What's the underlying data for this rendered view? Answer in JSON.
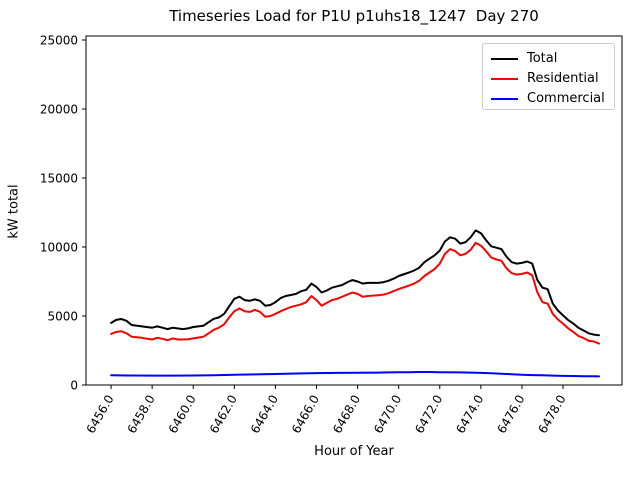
{
  "title": "Timeseries Load for P1U p1uhs18_1247  Day 270",
  "chart_data": {
    "type": "line",
    "title": "Timeseries Load for P1U p1uhs18_1247  Day 270",
    "xlabel": "Hour of Year",
    "ylabel": "kW total",
    "xlim": [
      6454.78,
      6480.87
    ],
    "ylim": [
      0,
      25290
    ],
    "grid": false,
    "xticks": [
      6456,
      6458,
      6460,
      6462,
      6464,
      6466,
      6468,
      6470,
      6472,
      6474,
      6476,
      6478
    ],
    "xtick_labels": [
      "6456.0",
      "6458.0",
      "6460.0",
      "6462.0",
      "6464.0",
      "6466.0",
      "6468.0",
      "6470.0",
      "6472.0",
      "6474.0",
      "6476.0",
      "6478.0"
    ],
    "yticks": [
      0,
      5000,
      10000,
      15000,
      20000,
      25000
    ],
    "ytick_labels": [
      "0",
      "5000",
      "10000",
      "15000",
      "20000",
      "25000"
    ],
    "legend": {
      "position": "upper right"
    },
    "series": [
      {
        "name": "Total",
        "color": "#000000",
        "points": [
          [
            6456.0,
            4500
          ],
          [
            6456.25,
            4720
          ],
          [
            6456.5,
            4780
          ],
          [
            6456.75,
            4650
          ],
          [
            6457.0,
            4350
          ],
          [
            6457.5,
            4250
          ],
          [
            6458.0,
            4150
          ],
          [
            6458.25,
            4250
          ],
          [
            6458.5,
            4150
          ],
          [
            6458.75,
            4050
          ],
          [
            6459.0,
            4150
          ],
          [
            6459.5,
            4050
          ],
          [
            6459.75,
            4100
          ],
          [
            6460.0,
            4200
          ],
          [
            6460.5,
            4300
          ],
          [
            6460.75,
            4550
          ],
          [
            6461.0,
            4800
          ],
          [
            6461.25,
            4900
          ],
          [
            6461.5,
            5150
          ],
          [
            6461.75,
            5700
          ],
          [
            6462.0,
            6250
          ],
          [
            6462.25,
            6400
          ],
          [
            6462.5,
            6150
          ],
          [
            6462.75,
            6100
          ],
          [
            6463.0,
            6200
          ],
          [
            6463.25,
            6100
          ],
          [
            6463.5,
            5750
          ],
          [
            6463.75,
            5800
          ],
          [
            6464.0,
            6000
          ],
          [
            6464.25,
            6300
          ],
          [
            6464.5,
            6450
          ],
          [
            6464.75,
            6520
          ],
          [
            6465.0,
            6600
          ],
          [
            6465.25,
            6800
          ],
          [
            6465.5,
            6900
          ],
          [
            6465.75,
            7350
          ],
          [
            6466.0,
            7100
          ],
          [
            6466.25,
            6700
          ],
          [
            6466.5,
            6850
          ],
          [
            6466.75,
            7050
          ],
          [
            6467.0,
            7150
          ],
          [
            6467.25,
            7250
          ],
          [
            6467.5,
            7450
          ],
          [
            6467.75,
            7600
          ],
          [
            6468.0,
            7500
          ],
          [
            6468.25,
            7350
          ],
          [
            6468.5,
            7400
          ],
          [
            6469.0,
            7400
          ],
          [
            6469.25,
            7450
          ],
          [
            6469.5,
            7550
          ],
          [
            6469.75,
            7700
          ],
          [
            6470.0,
            7900
          ],
          [
            6470.5,
            8150
          ],
          [
            6470.75,
            8300
          ],
          [
            6471.0,
            8500
          ],
          [
            6471.25,
            8900
          ],
          [
            6471.5,
            9150
          ],
          [
            6471.75,
            9400
          ],
          [
            6472.0,
            9750
          ],
          [
            6472.25,
            10400
          ],
          [
            6472.5,
            10700
          ],
          [
            6472.75,
            10600
          ],
          [
            6473.0,
            10250
          ],
          [
            6473.25,
            10350
          ],
          [
            6473.5,
            10700
          ],
          [
            6473.75,
            11200
          ],
          [
            6474.0,
            11000
          ],
          [
            6474.25,
            10500
          ],
          [
            6474.5,
            10050
          ],
          [
            6474.75,
            9950
          ],
          [
            6475.0,
            9850
          ],
          [
            6475.25,
            9300
          ],
          [
            6475.5,
            8900
          ],
          [
            6475.75,
            8800
          ],
          [
            6476.0,
            8850
          ],
          [
            6476.25,
            8950
          ],
          [
            6476.5,
            8800
          ],
          [
            6476.75,
            7600
          ],
          [
            6477.0,
            7050
          ],
          [
            6477.25,
            6950
          ],
          [
            6477.5,
            5900
          ],
          [
            6477.75,
            5400
          ],
          [
            6478.0,
            5050
          ],
          [
            6478.25,
            4700
          ],
          [
            6478.5,
            4450
          ],
          [
            6478.75,
            4150
          ],
          [
            6479.0,
            3950
          ],
          [
            6479.25,
            3750
          ],
          [
            6479.5,
            3650
          ],
          [
            6479.75,
            3600
          ]
        ]
      },
      {
        "name": "Residential",
        "color": "#ff0000",
        "points": [
          [
            6456.0,
            3700
          ],
          [
            6456.25,
            3850
          ],
          [
            6456.5,
            3900
          ],
          [
            6456.75,
            3750
          ],
          [
            6457.0,
            3500
          ],
          [
            6457.5,
            3420
          ],
          [
            6457.75,
            3350
          ],
          [
            6458.0,
            3300
          ],
          [
            6458.25,
            3420
          ],
          [
            6458.5,
            3350
          ],
          [
            6458.75,
            3250
          ],
          [
            6459.0,
            3380
          ],
          [
            6459.25,
            3300
          ],
          [
            6459.5,
            3300
          ],
          [
            6459.75,
            3320
          ],
          [
            6460.0,
            3380
          ],
          [
            6460.5,
            3500
          ],
          [
            6460.75,
            3750
          ],
          [
            6461.0,
            4000
          ],
          [
            6461.25,
            4150
          ],
          [
            6461.5,
            4400
          ],
          [
            6461.75,
            4900
          ],
          [
            6462.0,
            5350
          ],
          [
            6462.25,
            5550
          ],
          [
            6462.5,
            5350
          ],
          [
            6462.75,
            5300
          ],
          [
            6463.0,
            5450
          ],
          [
            6463.25,
            5300
          ],
          [
            6463.5,
            4950
          ],
          [
            6463.75,
            5000
          ],
          [
            6464.0,
            5150
          ],
          [
            6464.25,
            5350
          ],
          [
            6464.5,
            5500
          ],
          [
            6464.75,
            5650
          ],
          [
            6465.0,
            5750
          ],
          [
            6465.25,
            5850
          ],
          [
            6465.5,
            6000
          ],
          [
            6465.75,
            6450
          ],
          [
            6466.0,
            6150
          ],
          [
            6466.25,
            5750
          ],
          [
            6466.5,
            5950
          ],
          [
            6466.75,
            6150
          ],
          [
            6467.0,
            6250
          ],
          [
            6467.25,
            6400
          ],
          [
            6467.5,
            6550
          ],
          [
            6467.75,
            6700
          ],
          [
            6468.0,
            6600
          ],
          [
            6468.25,
            6400
          ],
          [
            6468.5,
            6450
          ],
          [
            6469.0,
            6500
          ],
          [
            6469.25,
            6550
          ],
          [
            6469.5,
            6650
          ],
          [
            6469.75,
            6800
          ],
          [
            6470.0,
            6950
          ],
          [
            6470.5,
            7200
          ],
          [
            6470.75,
            7350
          ],
          [
            6471.0,
            7550
          ],
          [
            6471.25,
            7900
          ],
          [
            6471.5,
            8150
          ],
          [
            6471.75,
            8400
          ],
          [
            6472.0,
            8800
          ],
          [
            6472.25,
            9500
          ],
          [
            6472.5,
            9850
          ],
          [
            6472.75,
            9700
          ],
          [
            6473.0,
            9400
          ],
          [
            6473.25,
            9500
          ],
          [
            6473.5,
            9800
          ],
          [
            6473.75,
            10300
          ],
          [
            6474.0,
            10100
          ],
          [
            6474.25,
            9700
          ],
          [
            6474.5,
            9250
          ],
          [
            6474.75,
            9100
          ],
          [
            6475.0,
            9000
          ],
          [
            6475.25,
            8450
          ],
          [
            6475.5,
            8100
          ],
          [
            6475.75,
            8000
          ],
          [
            6476.0,
            8050
          ],
          [
            6476.25,
            8150
          ],
          [
            6476.5,
            7950
          ],
          [
            6476.75,
            6700
          ],
          [
            6477.0,
            6000
          ],
          [
            6477.25,
            5900
          ],
          [
            6477.5,
            5150
          ],
          [
            6477.75,
            4750
          ],
          [
            6478.0,
            4450
          ],
          [
            6478.25,
            4100
          ],
          [
            6478.5,
            3850
          ],
          [
            6478.75,
            3550
          ],
          [
            6479.0,
            3400
          ],
          [
            6479.25,
            3200
          ],
          [
            6479.5,
            3150
          ],
          [
            6479.75,
            3000
          ]
        ]
      },
      {
        "name": "Commercial",
        "color": "#0000ff",
        "points": [
          [
            6456.0,
            700
          ],
          [
            6457.0,
            690
          ],
          [
            6458.0,
            680
          ],
          [
            6459.0,
            680
          ],
          [
            6460.0,
            690
          ],
          [
            6461.0,
            710
          ],
          [
            6462.0,
            740
          ],
          [
            6463.0,
            770
          ],
          [
            6464.0,
            800
          ],
          [
            6465.0,
            830
          ],
          [
            6466.0,
            860
          ],
          [
            6467.0,
            880
          ],
          [
            6468.0,
            890
          ],
          [
            6469.0,
            900
          ],
          [
            6470.0,
            920
          ],
          [
            6470.5,
            930
          ],
          [
            6471.0,
            940
          ],
          [
            6471.5,
            940
          ],
          [
            6472.0,
            930
          ],
          [
            6473.0,
            910
          ],
          [
            6474.0,
            880
          ],
          [
            6474.5,
            850
          ],
          [
            6475.0,
            810
          ],
          [
            6475.5,
            780
          ],
          [
            6476.0,
            750
          ],
          [
            6476.5,
            720
          ],
          [
            6477.0,
            700
          ],
          [
            6477.5,
            680
          ],
          [
            6478.0,
            660
          ],
          [
            6478.5,
            650
          ],
          [
            6479.0,
            640
          ],
          [
            6479.5,
            630
          ],
          [
            6479.75,
            620
          ]
        ]
      }
    ]
  }
}
